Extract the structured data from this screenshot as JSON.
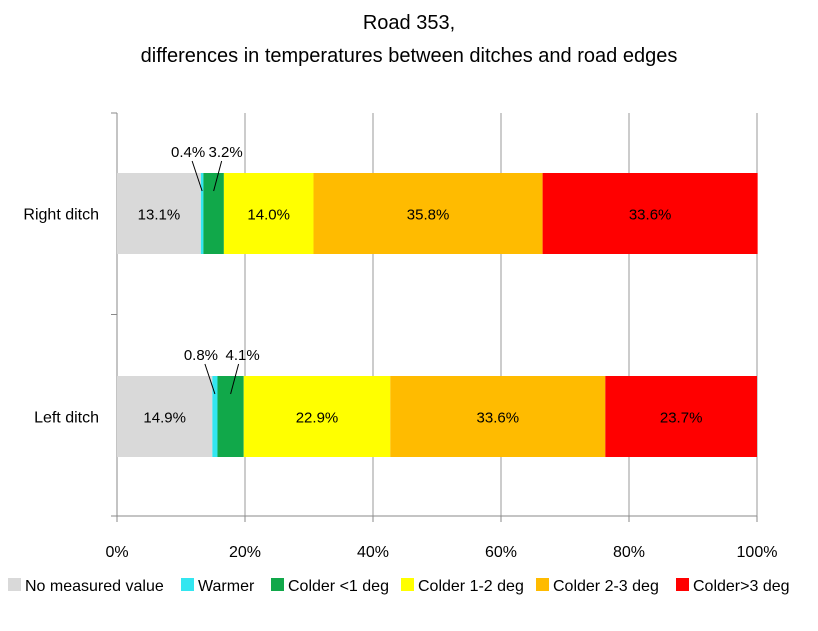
{
  "chart_data": {
    "type": "bar",
    "orientation": "horizontal",
    "stacked": true,
    "title": "Road 353,",
    "subtitle": "differences in temperatures between ditches and road edges",
    "categories": [
      "Right ditch",
      "Left ditch"
    ],
    "xlim": [
      0,
      100
    ],
    "x_ticks": [
      "0%",
      "20%",
      "40%",
      "60%",
      "80%",
      "100%"
    ],
    "grid": true,
    "legend_position": "bottom",
    "series": [
      {
        "name": "No measured value",
        "color": "#d9d9d9",
        "values": [
          13.1,
          14.9
        ],
        "labels": [
          "13.1%",
          "14.9%"
        ]
      },
      {
        "name": "Warmer",
        "color": "#33e6f0",
        "values": [
          0.4,
          0.8
        ],
        "labels": [
          "0.4%",
          "0.8%"
        ]
      },
      {
        "name": "Colder <1 deg",
        "color": "#11a84a",
        "values": [
          3.2,
          4.1
        ],
        "labels": [
          "3.2%",
          "4.1%"
        ]
      },
      {
        "name": "Colder 1-2 deg",
        "color": "#ffff00",
        "values": [
          14.0,
          22.9
        ],
        "labels": [
          "14.0%",
          "22.9%"
        ]
      },
      {
        "name": "Colder 2-3 deg",
        "color": "#ffbb00",
        "values": [
          35.8,
          33.6
        ],
        "labels": [
          "35.8%",
          "33.6%"
        ]
      },
      {
        "name": "Colder>3 deg",
        "color": "#ff0000",
        "values": [
          33.6,
          23.7
        ],
        "labels": [
          "33.6%",
          "23.7%"
        ]
      }
    ]
  }
}
